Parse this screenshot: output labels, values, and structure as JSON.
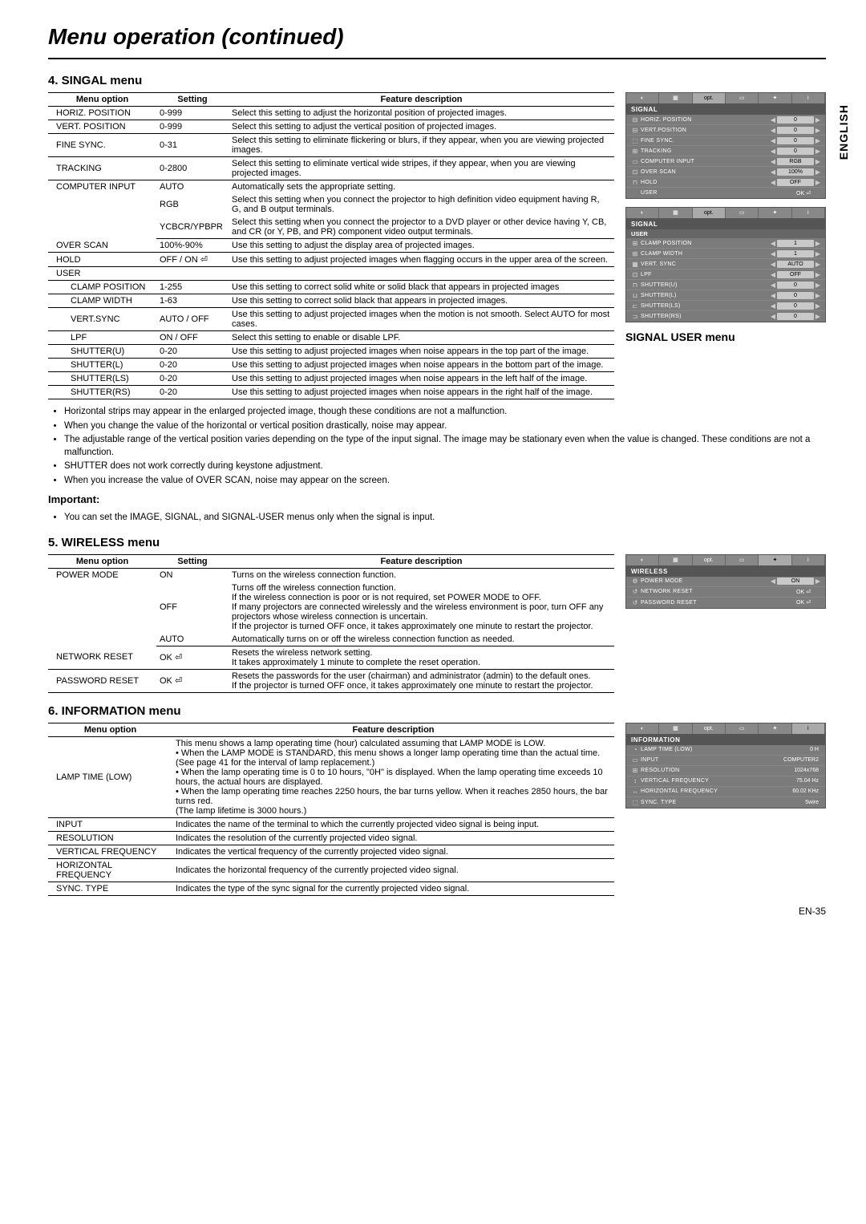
{
  "page": {
    "title": "Menu operation (continued)",
    "language_tab": "ENGLISH",
    "page_number": "EN-35"
  },
  "section4": {
    "title": "4. SINGAL menu",
    "headers": {
      "opt": "Menu option",
      "setting": "Setting",
      "desc": "Feature description"
    },
    "rows": [
      {
        "opt": "HORIZ. POSITION",
        "setting": "0-999",
        "desc": "Select this setting to adjust the horizontal position of projected images."
      },
      {
        "opt": "VERT. POSITION",
        "setting": "0-999",
        "desc": "Select this setting to adjust the vertical position of projected images."
      },
      {
        "opt": "FINE SYNC.",
        "setting": "0-31",
        "desc": "Select this setting to eliminate flickering or blurs, if they appear, when you are viewing projected images."
      },
      {
        "opt": "TRACKING",
        "setting": "0-2800",
        "desc": "Select this setting to eliminate vertical wide stripes, if they appear, when you are viewing projected images."
      },
      {
        "opt": "COMPUTER INPUT",
        "setting": "AUTO",
        "desc": "Automatically sets the appropriate setting.",
        "group_start": true
      },
      {
        "opt": "",
        "setting": "RGB",
        "desc": "Select this setting when you connect the projector to high definition video equipment having R, G, and B output terminals.",
        "group_mid": true
      },
      {
        "opt": "",
        "setting": "YCBCR/YPBPR",
        "desc": "Select this setting when you connect the projector to a DVD player or other device having Y, CB, and CR (or Y, PB, and PR) component video output terminals."
      },
      {
        "opt": "OVER SCAN",
        "setting": "100%-90%",
        "desc": "Use this setting to adjust the display area of projected images."
      },
      {
        "opt": "HOLD",
        "setting": "OFF / ON ⏎",
        "desc": "Use this setting to adjust projected images when flagging occurs in the upper area of the screen."
      },
      {
        "opt": "USER",
        "setting": "",
        "desc": ""
      },
      {
        "opt": "CLAMP POSITION",
        "sub": true,
        "setting": "1-255",
        "desc": "Use this setting to correct solid white or solid black that appears in projected images"
      },
      {
        "opt": "CLAMP WIDTH",
        "sub": true,
        "setting": "1-63",
        "desc": "Use this setting to correct solid black that appears in projected images."
      },
      {
        "opt": "VERT.SYNC",
        "sub": true,
        "setting": "AUTO / OFF",
        "desc": "Use this setting to adjust projected images when the motion is not smooth. Select AUTO for most cases."
      },
      {
        "opt": "LPF",
        "sub": true,
        "setting": "ON / OFF",
        "desc": "Select this setting to enable or disable LPF."
      },
      {
        "opt": "SHUTTER(U)",
        "sub": true,
        "setting": "0-20",
        "desc": "Use this setting to adjust projected images when noise appears in the top part of the image."
      },
      {
        "opt": "SHUTTER(L)",
        "sub": true,
        "setting": "0-20",
        "desc": "Use this setting to adjust projected images when noise appears in the bottom part of the image."
      },
      {
        "opt": "SHUTTER(LS)",
        "sub": true,
        "setting": "0-20",
        "desc": "Use this setting to adjust projected images when noise appears in the left half of the image."
      },
      {
        "opt": "SHUTTER(RS)",
        "sub": true,
        "setting": "0-20",
        "desc": "Use this setting to adjust projected images when noise appears in the right half of the image."
      }
    ],
    "notes": [
      "Horizontal strips may appear in the enlarged projected image, though these conditions are not a malfunction.",
      "When you change the value of the horizontal or vertical position drastically, noise may appear.",
      "The adjustable range of the vertical position varies depending on the type of the input signal. The image may be stationary even when the value is changed. These conditions are not a malfunction.",
      "SHUTTER does not work correctly during keystone adjustment.",
      "When you increase the value of OVER SCAN, noise may appear on the screen."
    ],
    "important_label": "Important:",
    "important_note": "You can set the IMAGE, SIGNAL, and SIGNAL-USER menus only when the signal is input."
  },
  "osd_signal": {
    "tabs": [
      "◐",
      "▦",
      "opt.",
      "▭",
      "✦",
      "i"
    ],
    "header": "SIGNAL",
    "rows": [
      {
        "icon": "⊟",
        "label": "HORIZ. POSITION",
        "val": "0"
      },
      {
        "icon": "⊟",
        "label": "VERT.POSITION",
        "val": "0"
      },
      {
        "icon": "⬚",
        "label": "FINE SYNC.",
        "val": "0"
      },
      {
        "icon": "⊞",
        "label": "TRACKING",
        "val": "0"
      },
      {
        "icon": "▭",
        "label": "COMPUTER INPUT",
        "val": "RGB"
      },
      {
        "icon": "⊡",
        "label": "OVER SCAN",
        "val": "100%"
      },
      {
        "icon": "⊓",
        "label": "HOLD",
        "val": "OFF"
      },
      {
        "icon": "",
        "label": "USER",
        "val": "OK ⏎",
        "plain": true
      }
    ]
  },
  "osd_user": {
    "tabs": [
      "◐",
      "▦",
      "opt.",
      "▭",
      "✦",
      "i"
    ],
    "header": "SIGNAL",
    "subheader": "USER",
    "rows": [
      {
        "icon": "⊞",
        "label": "CLAMP POSITION",
        "val": "1"
      },
      {
        "icon": "⊞",
        "label": "CLAMP WIDTH",
        "val": "1"
      },
      {
        "icon": "▦",
        "label": "VERT. SYNC",
        "val": "AUTO"
      },
      {
        "icon": "⊡",
        "label": "LPF",
        "val": "OFF"
      },
      {
        "icon": "⊓",
        "label": "SHUTTER(U)",
        "val": "0"
      },
      {
        "icon": "⊔",
        "label": "SHUTTER(L)",
        "val": "0"
      },
      {
        "icon": "⊏",
        "label": "SHUTTER(LS)",
        "val": "0"
      },
      {
        "icon": "⊐",
        "label": "SHUTTER(RS)",
        "val": "0"
      }
    ],
    "caption": "SIGNAL USER menu"
  },
  "section5": {
    "title": "5. WIRELESS menu",
    "headers": {
      "opt": "Menu option",
      "setting": "Setting",
      "desc": "Feature description"
    },
    "rows": [
      {
        "opt": "POWER MODE",
        "setting": "ON",
        "desc": "Turns on the wireless connection function.",
        "group_start": true
      },
      {
        "opt": "",
        "setting": "OFF",
        "desc": "Turns off the wireless connection function.\nIf the wireless connection is poor or is not required, set POWER MODE to OFF.\nIf many projectors are connected wirelessly and the wireless environment is poor, turn OFF any projectors whose wireless connection is uncertain.\nIf the projector is turned OFF once, it takes approximately one minute to restart the projector.",
        "group_mid": true
      },
      {
        "opt": "",
        "setting": "AUTO",
        "desc": "Automatically turns on or off the wireless connection function as needed."
      },
      {
        "opt": "NETWORK RESET",
        "setting": "OK ⏎",
        "desc": "Resets the wireless network setting.\nIt takes approximately 1 minute to complete the reset operation."
      },
      {
        "opt": "PASSWORD RESET",
        "setting": "OK ⏎",
        "desc": "Resets the passwords for the user (chairman) and administrator (admin) to the default ones.\nIf the projector is turned OFF once, it takes approximately one minute to restart the projector."
      }
    ]
  },
  "osd_wireless": {
    "tabs": [
      "◐",
      "▦",
      "opt.",
      "▭",
      "✦",
      "i"
    ],
    "header": "WIRELESS",
    "rows": [
      {
        "icon": "⚙",
        "label": "POWER MODE",
        "val": "ON"
      },
      {
        "icon": "↺",
        "label": "NETWORK RESET",
        "val": "OK ⏎",
        "plain": true
      },
      {
        "icon": "↺",
        "label": "PASSWORD RESET",
        "val": "OK ⏎",
        "plain": true
      }
    ]
  },
  "section6": {
    "title": "6. INFORMATION menu",
    "headers": {
      "opt": "Menu option",
      "desc": "Feature description"
    },
    "rows": [
      {
        "opt": "LAMP TIME (LOW)",
        "desc": "This menu shows a lamp operating time (hour) calculated assuming that LAMP MODE is LOW.\n• When the LAMP MODE is STANDARD, this menu shows a longer lamp operating time than the actual time. (See page 41 for the interval of lamp replacement.)\n• When the lamp operating time is 0 to 10 hours, \"0H\" is displayed. When the lamp operating time exceeds 10 hours, the actual hours are displayed.\n• When the lamp operating time reaches 2250 hours, the bar turns yellow. When it reaches 2850 hours, the bar turns red.\n(The lamp lifetime is 3000 hours.)"
      },
      {
        "opt": "INPUT",
        "desc": "Indicates the name of the terminal to which the currently projected video signal is being input."
      },
      {
        "opt": "RESOLUTION",
        "desc": "Indicates the resolution of the currently projected video signal."
      },
      {
        "opt": "VERTICAL FREQUENCY",
        "desc": "Indicates the vertical frequency of the currently projected video signal."
      },
      {
        "opt": "HORIZONTAL FREQUENCY",
        "desc": "Indicates the horizontal frequency of the currently projected video signal."
      },
      {
        "opt": "SYNC. TYPE",
        "desc": "Indicates the type of the sync signal for the currently projected video signal."
      }
    ]
  },
  "osd_info": {
    "tabs": [
      "◐",
      "▦",
      "opt.",
      "▭",
      "✦",
      "i"
    ],
    "header": "INFORMATION",
    "rows": [
      {
        "icon": "◔",
        "label": "LAMP TIME (LOW)",
        "val": "0 H",
        "bar": true
      },
      {
        "icon": "▭",
        "label": "INPUT",
        "val": "COMPUTER2"
      },
      {
        "icon": "⊞",
        "label": "RESOLUTION",
        "val": "1024x768"
      },
      {
        "icon": "↕",
        "label": "VERTICAL FREQUENCY",
        "val": "75.04 Hz"
      },
      {
        "icon": "↔",
        "label": "HORIZONTAL FREQUENCY",
        "val": "60.02 KHz"
      },
      {
        "icon": "⬚",
        "label": "SYNC. TYPE",
        "val": "5wire"
      }
    ]
  }
}
